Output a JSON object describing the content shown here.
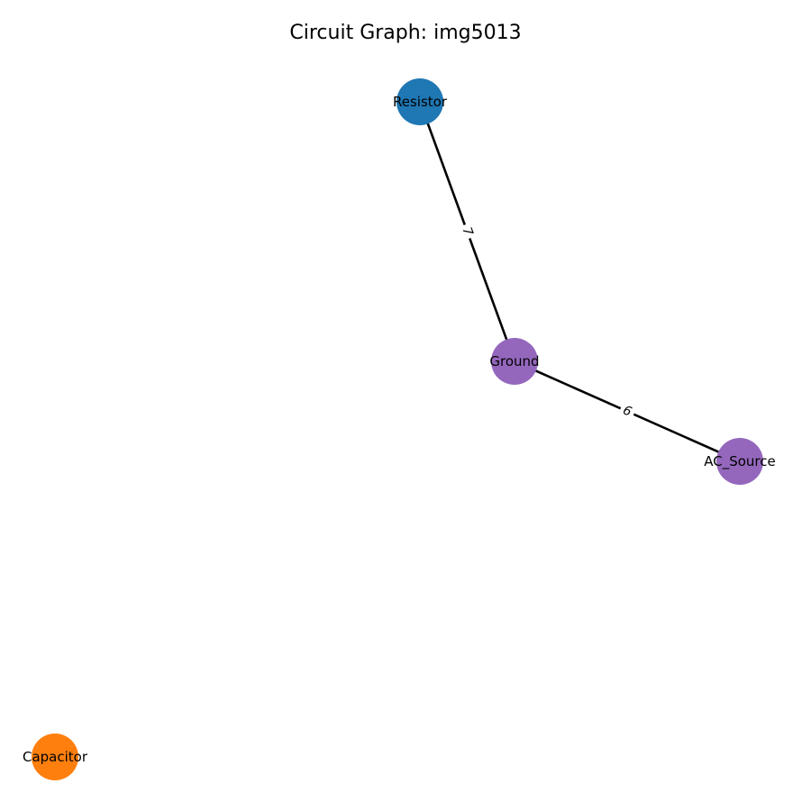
{
  "title": "Circuit Graph: img5013",
  "nodes": [
    {
      "id": "Resistor",
      "label": "Resistor",
      "color": "#1f77b4"
    },
    {
      "id": "Ground",
      "label": "Ground",
      "color": "#9467bd"
    },
    {
      "id": "AC_Source",
      "label": "AC_Source",
      "color": "#9467bd"
    },
    {
      "id": "Capacitor",
      "label": "Capacitor",
      "color": "#ff7f0e"
    }
  ],
  "edges": [
    {
      "source": "Resistor",
      "target": "Ground",
      "label": "7"
    },
    {
      "source": "Ground",
      "target": "AC_Source",
      "label": "6"
    }
  ]
}
